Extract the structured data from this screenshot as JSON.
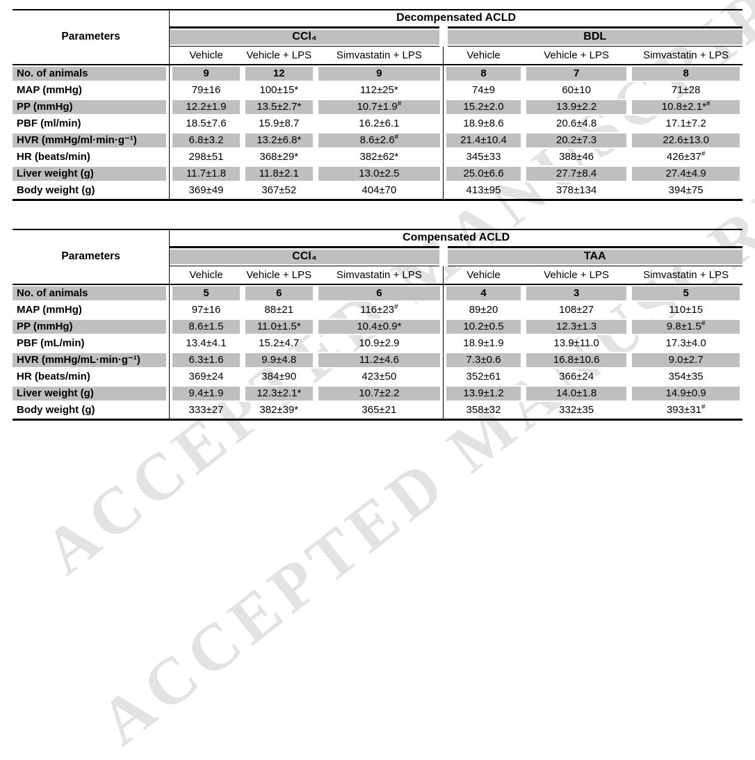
{
  "watermark_text": "ACCEPTED MANUSCRIPT",
  "colors": {
    "shade": "#bfbfbf",
    "line": "#000000",
    "watermark": "#e3e3e3"
  },
  "tables": [
    {
      "title": "Decompensated ACLD",
      "param_header": "Parameters",
      "groups": [
        {
          "name": "CCl₄",
          "subcols": [
            "Vehicle",
            "Vehicle + LPS",
            "Simvastatin + LPS"
          ]
        },
        {
          "name": "BDL",
          "subcols": [
            "Vehicle",
            "Vehicle + LPS",
            "Simvastatin + LPS"
          ]
        }
      ],
      "rows": [
        {
          "label": "No. of animals",
          "shaded": true,
          "bold_values": true,
          "values": [
            "9",
            "12",
            "9",
            "8",
            "7",
            "8"
          ]
        },
        {
          "label": "MAP (mmHg)",
          "shaded": false,
          "values": [
            "79±16",
            "100±15*",
            "112±25*",
            "74±9",
            "60±10",
            "71±28"
          ]
        },
        {
          "label": "PP (mmHg)",
          "shaded": true,
          "values": [
            "12.2±1.9",
            "13.5±2.7*",
            "10.7±1.9#",
            "15.2±2.0",
            "13.9±2.2",
            "10.8±2.1*#"
          ]
        },
        {
          "label": "PBF (ml/min)",
          "shaded": false,
          "values": [
            "18.5±7.6",
            "15.9±8.7",
            "16.2±6.1",
            "18.9±8.6",
            "20.6±4.8",
            "17.1±7.2"
          ]
        },
        {
          "label": "HVR (mmHg/ml·min·g⁻¹)",
          "shaded": true,
          "values": [
            "6.8±3.2",
            "13.2±6.8*",
            "8.6±2.6#",
            "21.4±10.4",
            "20.2±7.3",
            "22.6±13.0"
          ]
        },
        {
          "label": "HR (beats/min)",
          "shaded": false,
          "values": [
            "298±51",
            "368±29*",
            "382±62*",
            "345±33",
            "388±46",
            "426±37#"
          ]
        },
        {
          "label": "Liver weight (g)",
          "shaded": true,
          "values": [
            "11.7±1.8",
            "11.8±2.1",
            "13.0±2.5",
            "25.0±6.6",
            "27.7±8.4",
            "27.4±4.9"
          ]
        },
        {
          "label": "Body weight (g)",
          "shaded": false,
          "values": [
            "369±49",
            "367±52",
            "404±70",
            "413±95",
            "378±134",
            "394±75"
          ]
        }
      ]
    },
    {
      "title": "Compensated ACLD",
      "param_header": "Parameters",
      "groups": [
        {
          "name": "CCl₄",
          "subcols": [
            "Vehicle",
            "Vehicle + LPS",
            "Simvastatin + LPS"
          ]
        },
        {
          "name": "TAA",
          "subcols": [
            "Vehicle",
            "Vehicle + LPS",
            "Simvastatin + LPS"
          ]
        }
      ],
      "rows": [
        {
          "label": "No. of animals",
          "shaded": true,
          "bold_values": true,
          "values": [
            "5",
            "6",
            "6",
            "4",
            "3",
            "5"
          ]
        },
        {
          "label": "MAP (mmHg)",
          "shaded": false,
          "values": [
            "97±16",
            "88±21",
            "116±23#",
            "89±20",
            "108±27",
            "110±15"
          ]
        },
        {
          "label": "PP (mmHg)",
          "shaded": true,
          "values": [
            "8.6±1.5",
            "11.0±1.5*",
            "10.4±0.9*",
            "10.2±0.5",
            "12.3±1.3",
            "9.8±1.5#"
          ]
        },
        {
          "label": "PBF (mL/min)",
          "shaded": false,
          "values": [
            "13.4±4.1",
            "15.2±4.7",
            "10.9±2.9",
            "18.9±1.9",
            "13.9±11.0",
            "17.3±4.0"
          ]
        },
        {
          "label": "HVR (mmHg/mL·min·g⁻¹)",
          "shaded": true,
          "values": [
            "6.3±1.6",
            "9.9±4.8",
            "11.2±4.6",
            "7.3±0.6",
            "16.8±10.6",
            "9.0±2.7"
          ]
        },
        {
          "label": "HR (beats/min)",
          "shaded": false,
          "values": [
            "369±24",
            "384±90",
            "423±50",
            "352±61",
            "366±24",
            "354±35"
          ]
        },
        {
          "label": "Liver weight (g)",
          "shaded": true,
          "values": [
            "9.4±1.9",
            "12.3±2.1*",
            "10.7±2.2",
            "13.9±1.2",
            "14.0±1.8",
            "14.9±0.9"
          ]
        },
        {
          "label": "Body weight (g)",
          "shaded": false,
          "values": [
            "333±27",
            "382±39*",
            "365±21",
            "358±32",
            "332±35",
            "393±31#"
          ]
        }
      ]
    }
  ]
}
